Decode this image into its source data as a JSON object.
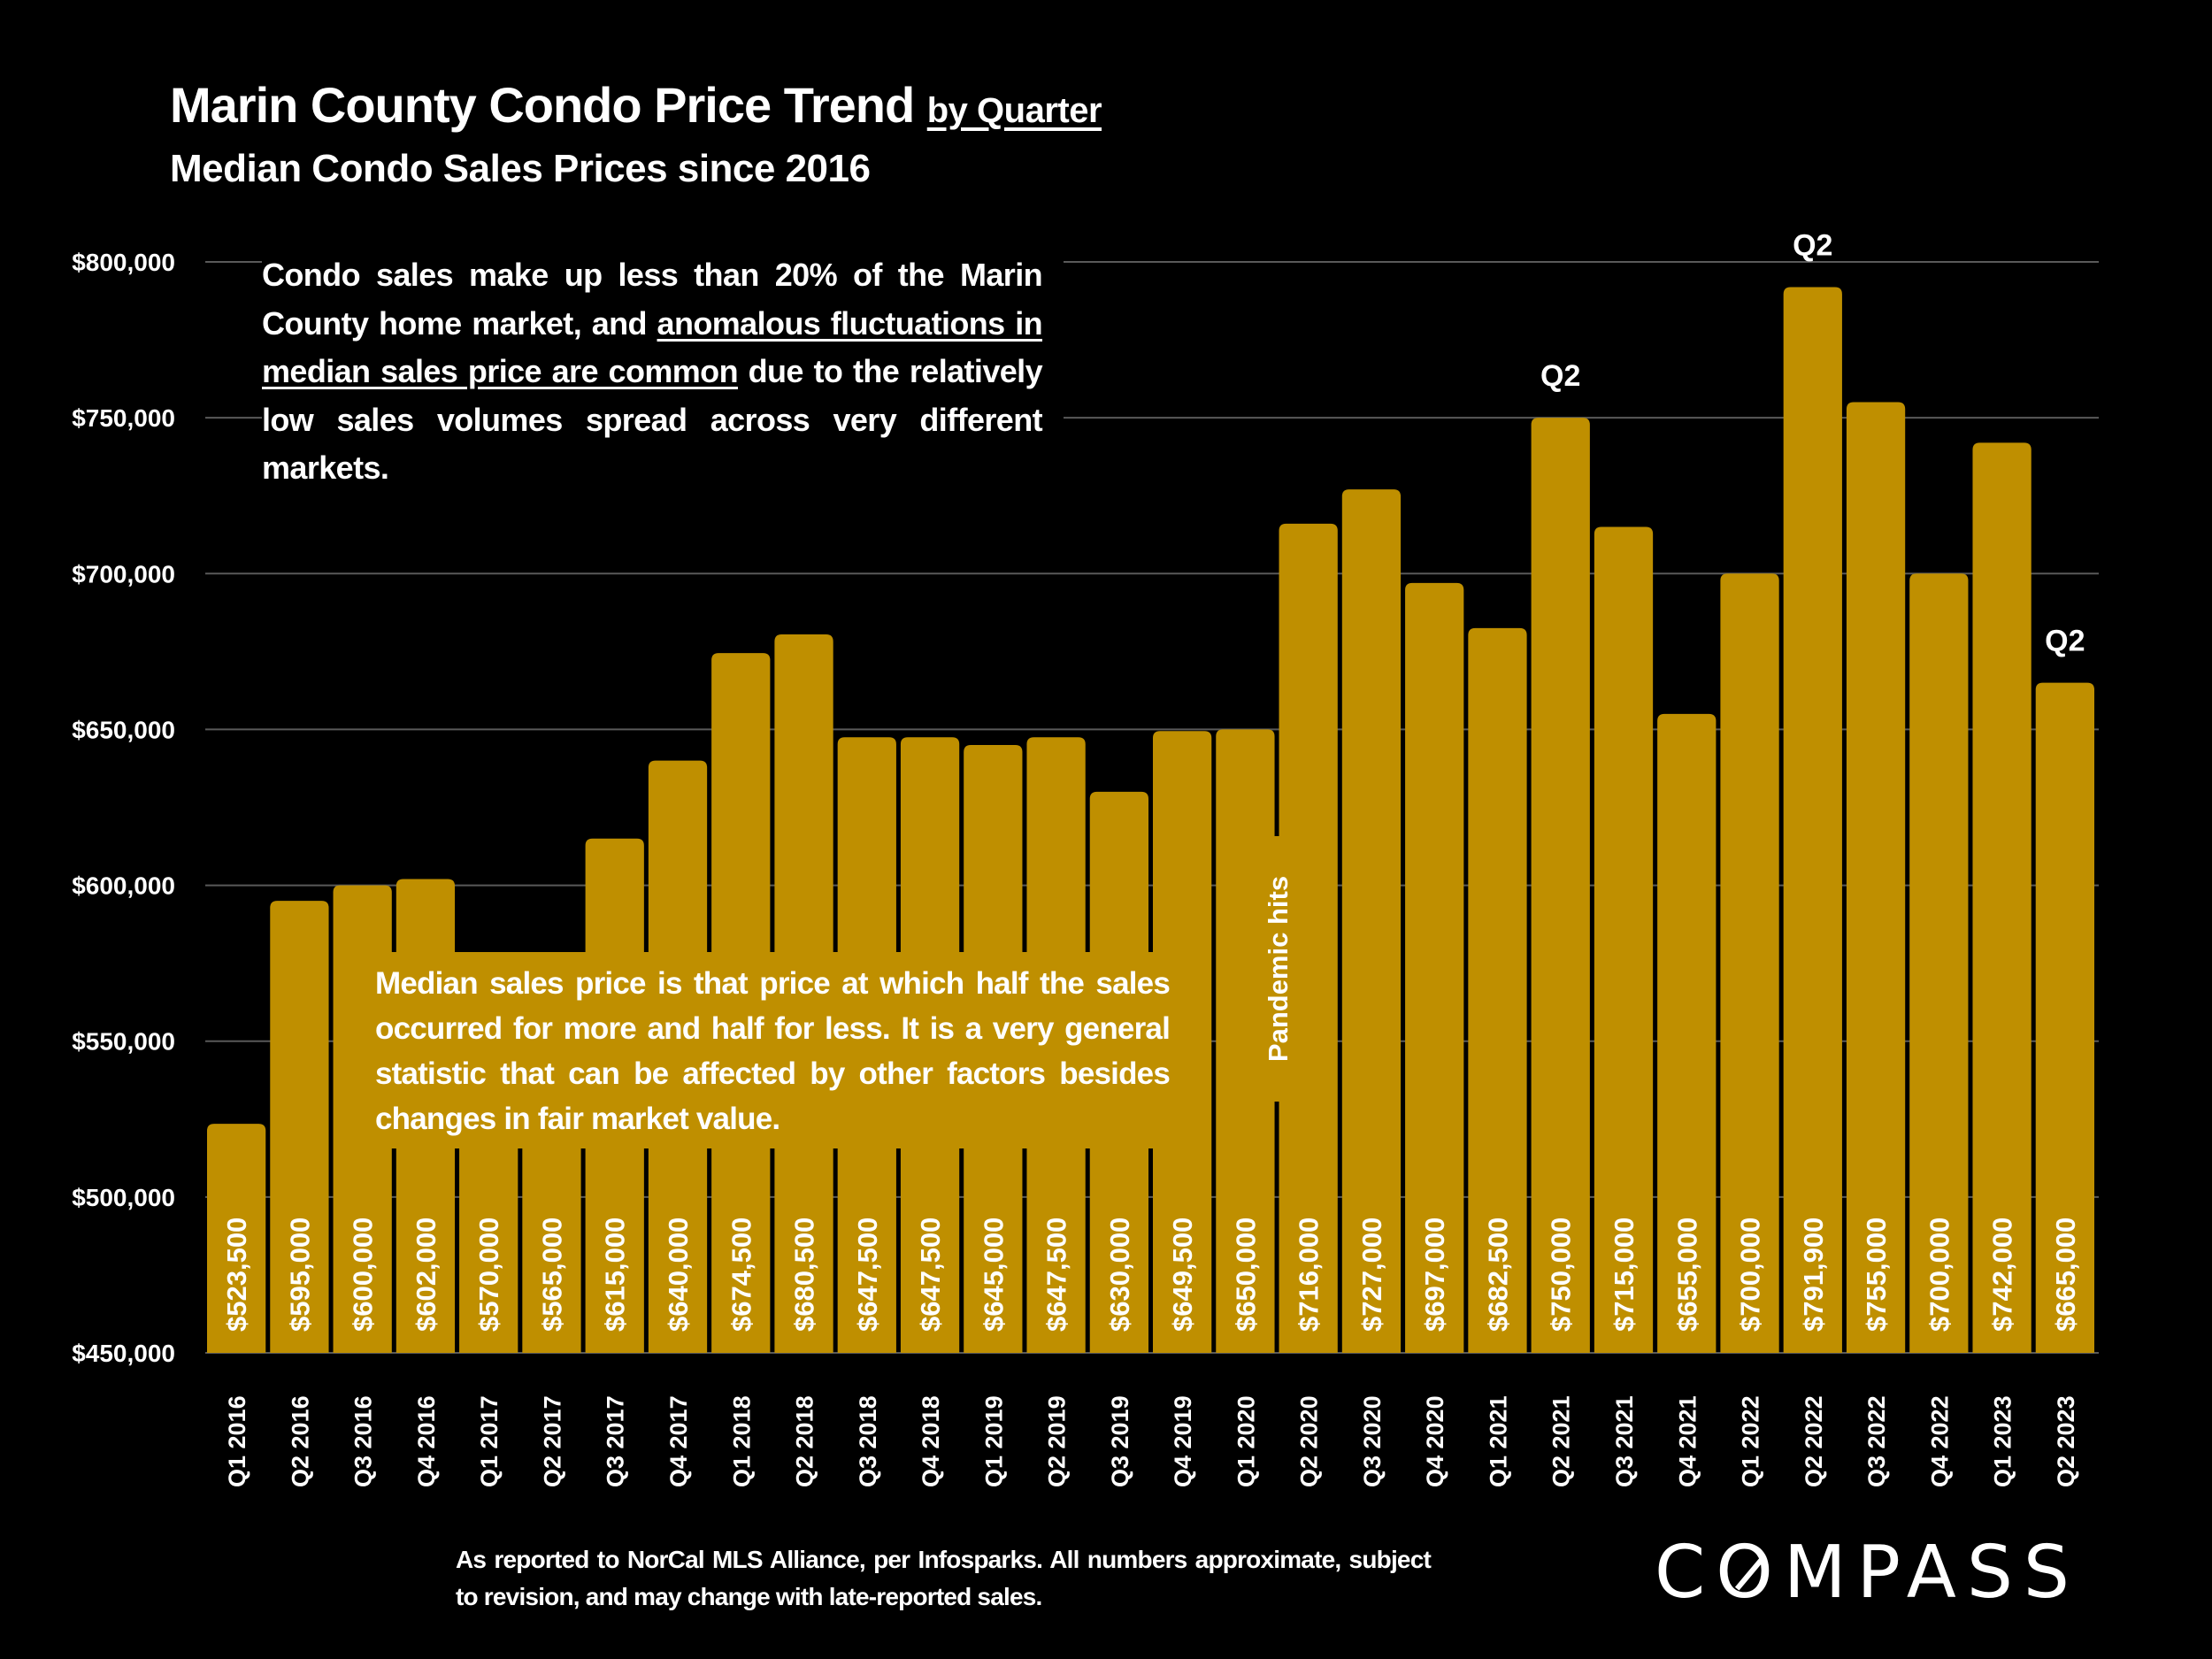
{
  "header": {
    "title": "Marin County Condo Price Trend",
    "title_suffix": "by Quarter",
    "subtitle": "Median Condo Sales Prices since 2016"
  },
  "annotations": {
    "top_note_part1": "Condo sales make up less than 20% of the Marin County home market, and ",
    "top_note_underlined": "anomalous fluctuations in median sales price are common",
    "top_note_part2": " due to the relatively low sales volumes spread across very different markets.",
    "median_note": "Median sales price is that price at which half the sales occurred for more and half for less. It is a very general statistic that can be affected by other factors besides changes in fair market value.",
    "pandemic_label": "Pandemic hits",
    "q2_markers": [
      {
        "category": "Q2 2021",
        "label": "Q2"
      },
      {
        "category": "Q2 2022",
        "label": "Q2"
      },
      {
        "category": "Q2 2023",
        "label": "Q2"
      }
    ]
  },
  "footer": {
    "source_note": "As reported to NorCal MLS Alliance, per Infosparks. All numbers approximate, subject to revision, and may change with late-reported sales.",
    "logo_text_before": "C",
    "logo_text_o": "O",
    "logo_text_after": "MPASS"
  },
  "colors": {
    "bar": "#bf8f00",
    "background": "#000000",
    "text": "#ffffff",
    "gridline": "#595959"
  },
  "chart_data": {
    "type": "bar",
    "title": "Marin County Condo Price Trend by Quarter",
    "subtitle": "Median Condo Sales Prices since 2016",
    "xlabel": "",
    "ylabel": "",
    "ylim": [
      450000,
      800000
    ],
    "yticks": [
      450000,
      500000,
      550000,
      600000,
      650000,
      700000,
      750000,
      800000
    ],
    "ytick_labels": [
      "$450,000",
      "$500,000",
      "$550,000",
      "$600,000",
      "$650,000",
      "$700,000",
      "$750,000",
      "$800,000"
    ],
    "grid": true,
    "legend": "none",
    "categories": [
      "Q1 2016",
      "Q2 2016",
      "Q3 2016",
      "Q4 2016",
      "Q1 2017",
      "Q2 2017",
      "Q3 2017",
      "Q4 2017",
      "Q1 2018",
      "Q2 2018",
      "Q3 2018",
      "Q4 2018",
      "Q1 2019",
      "Q2 2019",
      "Q3 2019",
      "Q4 2019",
      "Q1 2020",
      "Q2 2020",
      "Q3 2020",
      "Q4 2020",
      "Q1 2021",
      "Q2 2021",
      "Q3 2021",
      "Q4 2021",
      "Q1 2022",
      "Q2 2022",
      "Q3 2022",
      "Q4 2022",
      "Q1 2023",
      "Q2 2023"
    ],
    "values": [
      523500,
      595000,
      600000,
      602000,
      570000,
      565000,
      615000,
      640000,
      674500,
      680500,
      647500,
      647500,
      645000,
      647500,
      630000,
      649500,
      650000,
      716000,
      727000,
      697000,
      682500,
      750000,
      715000,
      655000,
      700000,
      791900,
      755000,
      700000,
      742000,
      665000
    ],
    "data_labels": [
      "$523,500",
      "$595,000",
      "$600,000",
      "$602,000",
      "$570,000",
      "$565,000",
      "$615,000",
      "$640,000",
      "$674,500",
      "$680,500",
      "$647,500",
      "$647,500",
      "$645,000",
      "$647,500",
      "$630,000",
      "$649,500",
      "$650,000",
      "$716,000",
      "$727,000",
      "$697,000",
      "$682,500",
      "$750,000",
      "$715,000",
      "$655,000",
      "$700,000",
      "$791,900",
      "$755,000",
      "$700,000",
      "$742,000",
      "$665,000"
    ]
  }
}
